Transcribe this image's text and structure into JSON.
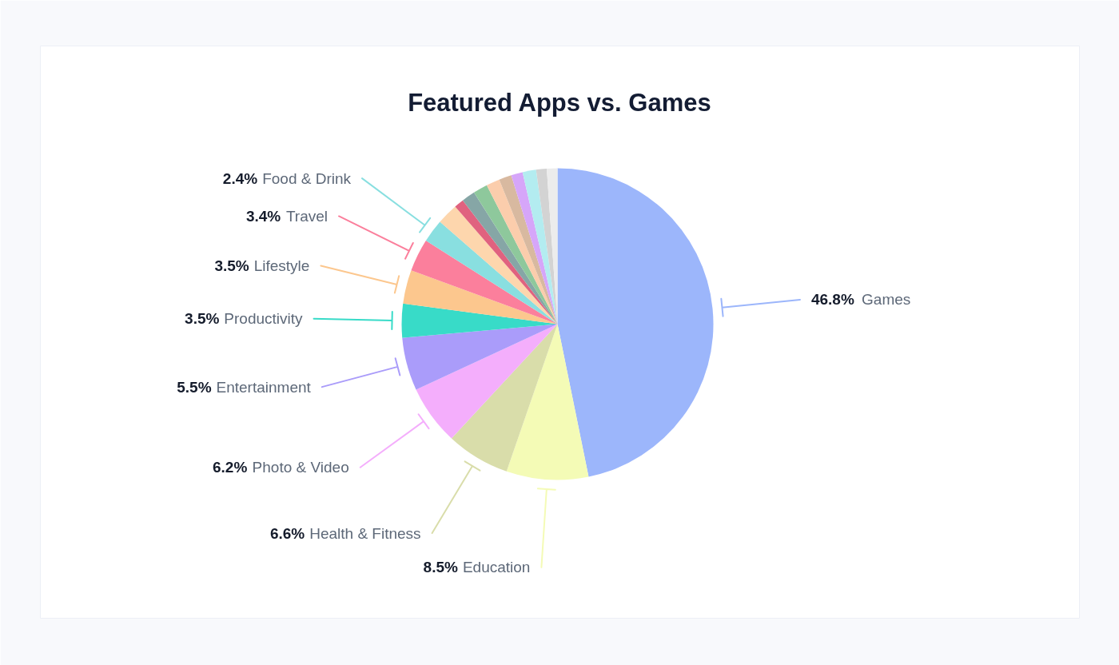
{
  "chart_data": {
    "type": "pie",
    "title": "Featured Apps vs. Games",
    "categories": [
      "Games",
      "Education",
      "Health & Fitness",
      "Photo & Video",
      "Entertainment",
      "Productivity",
      "Lifestyle",
      "Travel",
      "Food & Drink",
      null,
      null,
      null,
      null,
      null,
      null,
      null,
      null,
      null,
      null
    ],
    "values": [
      46.8,
      8.5,
      6.6,
      6.2,
      5.5,
      3.5,
      3.5,
      3.4,
      2.4,
      2.2,
      1.0,
      1.4,
      1.5,
      1.4,
      1.3,
      1.2,
      1.4,
      1.1,
      1.1
    ],
    "colors": [
      "#9cb6fb",
      "#f4fbb6",
      "#d9ddaa",
      "#f4aefc",
      "#aa9cfa",
      "#38dbc8",
      "#fcc78e",
      "#fb7f9c",
      "#89dfe0",
      "#fdd6ad",
      "#e0627f",
      "#86a6a6",
      "#8ec89c",
      "#fbcdac",
      "#d8b9a0",
      "#d6a6f9",
      "#b3ecf0",
      "#d3d3d3",
      "#ececec"
    ],
    "value_labels": [
      "46.8%",
      "8.5%",
      "6.6%",
      "6.2%",
      "5.5%",
      "3.5%",
      "3.5%",
      "3.4%",
      "2.4%",
      null,
      null,
      null,
      null,
      null,
      null,
      null,
      null,
      null,
      null
    ]
  }
}
